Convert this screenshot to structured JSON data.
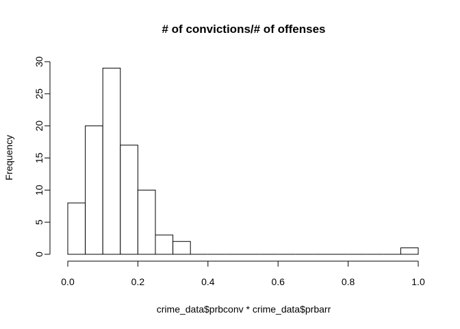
{
  "chart_data": {
    "type": "bar",
    "subtype": "histogram",
    "title": "# of convictions/# of offenses",
    "xlabel": "crime_data$prbconv * crime_data$prbarr",
    "ylabel": "Frequency",
    "bins": [
      [
        0.0,
        0.05
      ],
      [
        0.05,
        0.1
      ],
      [
        0.1,
        0.15
      ],
      [
        0.15,
        0.2
      ],
      [
        0.2,
        0.25
      ],
      [
        0.25,
        0.3
      ],
      [
        0.3,
        0.35
      ],
      [
        0.35,
        0.4
      ],
      [
        0.4,
        0.45
      ],
      [
        0.45,
        0.5
      ],
      [
        0.5,
        0.55
      ],
      [
        0.55,
        0.6
      ],
      [
        0.6,
        0.65
      ],
      [
        0.65,
        0.7
      ],
      [
        0.7,
        0.75
      ],
      [
        0.75,
        0.8
      ],
      [
        0.8,
        0.85
      ],
      [
        0.85,
        0.9
      ],
      [
        0.9,
        0.95
      ],
      [
        0.95,
        1.0
      ]
    ],
    "values": [
      8,
      20,
      29,
      17,
      10,
      3,
      2,
      0,
      0,
      0,
      0,
      0,
      0,
      0,
      0,
      0,
      0,
      0,
      0,
      1
    ],
    "xlim": [
      0,
      1
    ],
    "ylim": [
      0,
      30
    ],
    "x_ticks": [
      0.0,
      0.2,
      0.4,
      0.6,
      0.8,
      1.0
    ],
    "x_tick_labels": [
      "0.0",
      "0.2",
      "0.4",
      "0.6",
      "0.8",
      "1.0"
    ],
    "y_ticks": [
      0,
      5,
      10,
      15,
      20,
      25,
      30
    ],
    "y_tick_labels": [
      "0",
      "5",
      "10",
      "15",
      "20",
      "25",
      "30"
    ],
    "bar_fill": "#ffffff",
    "bar_stroke": "#000000"
  }
}
